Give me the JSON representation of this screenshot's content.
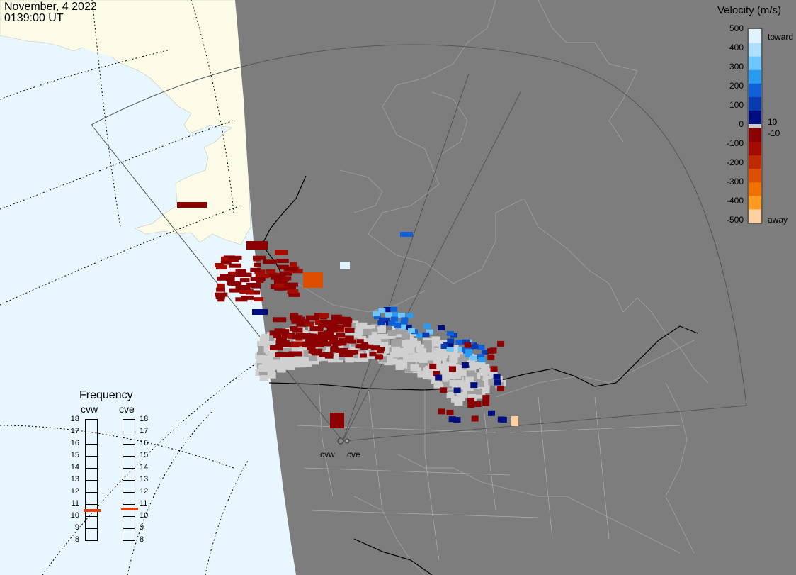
{
  "header": {
    "date": "November, 4 2022",
    "time": "0139:00 UT"
  },
  "colorbar": {
    "title": "Velocity (m/s)",
    "ticks": [
      "500",
      "400",
      "300",
      "200",
      "100",
      "0",
      "-100",
      "-200",
      "-300",
      "-400",
      "-500"
    ],
    "markers": {
      "upper": "10",
      "lower": "-10"
    },
    "toward_label": "toward",
    "away_label": "away",
    "colors": {
      "toward": [
        "#e0f4ff",
        "#b0e0ff",
        "#6ec6ff",
        "#2a9cf0",
        "#1060d8",
        "#0a3ab0",
        "#000e80"
      ],
      "away": [
        "#8b0000",
        "#a40c00",
        "#c02a00",
        "#dc4e00",
        "#f07000",
        "#ff9a20",
        "#ffd0a0"
      ],
      "zero": "#cccccc"
    }
  },
  "frequency_panel": {
    "title": "Frequency",
    "radars": [
      {
        "name": "cvw",
        "frequency_mhz": 10.5
      },
      {
        "name": "cve",
        "frequency_mhz": 10.6
      }
    ],
    "scale": [
      "18",
      "17",
      "16",
      "15",
      "14",
      "13",
      "12",
      "11",
      "10",
      "9",
      "8"
    ],
    "marker_color": "#e04010"
  },
  "radar_sites": [
    {
      "name": "cvw"
    },
    {
      "name": "cve"
    }
  ],
  "map_colors": {
    "ocean_day": "#e8f6ff",
    "land_day": "#fbfbe8",
    "night": "#7d7d7d",
    "ground_scatter": "#d0d0d0",
    "gray_cell": "#a0a0a0"
  }
}
